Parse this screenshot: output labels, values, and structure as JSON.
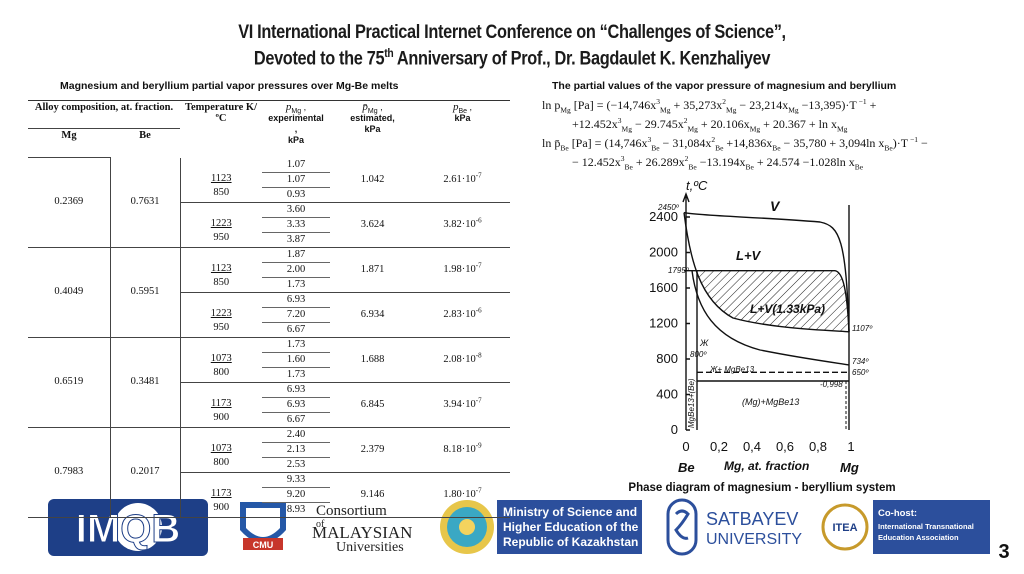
{
  "header": {
    "title_line1": "VI International Practical Internet Conference on “Challenges of Science”,",
    "title_line2_before": "Devoted to the 75",
    "title_line2_sup": "th",
    "title_line2_after": " Anniversary of Prof., Dr. Bagdaulet K. Kenzhaliyev"
  },
  "table": {
    "caption": "Magnesium and beryllium partial vapor pressures over Mg-Be melts",
    "head": {
      "alloy": "Alloy composition, at. fraction.",
      "mg": "Mg",
      "be": "Be",
      "temperature": "Temperature K/ºC",
      "exp": {
        "symbol": "p",
        "sub": "Mg",
        "lines": [
          " ,",
          "experimental",
          ",",
          "kPa"
        ]
      },
      "est": {
        "symbol": "p̄",
        "sub": "Mg",
        "lines": [
          " ,",
          "estimated,",
          "kPa"
        ]
      },
      "pbe": {
        "symbol": "p",
        "sub": "Be",
        "lines": [
          " ,",
          "kPa"
        ]
      }
    },
    "groups": [
      {
        "mg": "0.2369",
        "be": "0.7631",
        "subgroups": [
          {
            "k": "1123",
            "c": "850",
            "exp": [
              "1.07",
              "1.07",
              "0.93"
            ],
            "est": "1.042",
            "pbe": {
              "base": "2.61·10",
              "exp": "-7"
            }
          },
          {
            "k": "1223",
            "c": "950",
            "exp": [
              "3.60",
              "3.33",
              "3.87"
            ],
            "est": "3.624",
            "pbe": {
              "base": "3.82·10",
              "exp": "-6"
            }
          }
        ]
      },
      {
        "mg": "0.4049",
        "be": "0.5951",
        "subgroups": [
          {
            "k": "1123",
            "c": "850",
            "exp": [
              "1.87",
              "2.00",
              "1.73"
            ],
            "est": "1.871",
            "pbe": {
              "base": "1.98·10",
              "exp": "-7"
            }
          },
          {
            "k": "1223",
            "c": "950",
            "exp": [
              "6.93",
              "7.20",
              "6.67"
            ],
            "est": "6.934",
            "pbe": {
              "base": "2.83·10",
              "exp": "-6"
            }
          }
        ]
      },
      {
        "mg": "0.6519",
        "be": "0.3481",
        "subgroups": [
          {
            "k": "1073",
            "c": "800",
            "exp": [
              "1.73",
              "1.60",
              "1.73"
            ],
            "est": "1.688",
            "pbe": {
              "base": "2.08·10",
              "exp": "-8"
            }
          },
          {
            "k": "1173",
            "c": "900",
            "exp": [
              "6.93",
              "6.93",
              "6.67"
            ],
            "est": "6.845",
            "pbe": {
              "base": "3.94·10",
              "exp": "-7"
            }
          }
        ]
      },
      {
        "mg": "0.7983",
        "be": "0.2017",
        "subgroups": [
          {
            "k": "1073",
            "c": "800",
            "exp": [
              "2.40",
              "2.13",
              "2.53"
            ],
            "est": "2.379",
            "pbe": {
              "base": "8.18·10",
              "exp": "-9"
            }
          },
          {
            "k": "1173",
            "c": "900",
            "exp": [
              "9.33",
              "9.20",
              "8.93"
            ],
            "est": "9.146",
            "pbe": {
              "base": "1.80·10",
              "exp": "-7"
            }
          }
        ]
      }
    ]
  },
  "equations": {
    "title": "The partial values of the vapor pressure of magnesium and beryllium",
    "lines": [
      [
        "ln p",
        {
          "sub": "Mg"
        },
        " [Pa] = (−14,746x",
        {
          "sup": "3"
        },
        {
          "sub": "Mg"
        },
        " + 35,273x",
        {
          "sup": "2"
        },
        {
          "sub": "Mg"
        },
        " − 23,214x",
        {
          "sub": "Mg"
        },
        " −13,395)·T",
        {
          "sup": " −1"
        },
        " +"
      ],
      [
        "+12.452x",
        {
          "sup": "3"
        },
        {
          "sub": "Mg"
        },
        " − 29.745x",
        {
          "sup": "2"
        },
        {
          "sub": "Mg"
        },
        " + 20.106x",
        {
          "sub": "Mg"
        },
        " + 20.367 + ln x",
        {
          "sub": "Mg"
        }
      ],
      [
        "ln p̄",
        {
          "sub": "Be"
        },
        " [Pa] = (14,746x",
        {
          "sup": "3"
        },
        {
          "sub": "Be"
        },
        " − 31,084x",
        {
          "sup": "2"
        },
        {
          "sub": "Be"
        },
        " +14,836x",
        {
          "sub": "Be"
        },
        " − 35,780 + 3,094ln x",
        {
          "sub": "Be"
        },
        ")·T",
        {
          "sup": " −1"
        },
        " −"
      ],
      [
        "− 12.452x",
        {
          "sup": "3"
        },
        {
          "sub": "Be"
        },
        " + 26.289x",
        {
          "sup": "2"
        },
        {
          "sub": "Be"
        },
        " −13.194x",
        {
          "sub": "Be"
        },
        " + 24.574 −1.028ln x",
        {
          "sub": "Be"
        }
      ]
    ]
  },
  "diagram": {
    "y_label": "t,ºC",
    "yticks": [
      "2400",
      "2000",
      "1600",
      "1200",
      "800",
      "400",
      "0"
    ],
    "xticks": [
      "0",
      "0,2",
      "0,4",
      "0,6",
      "0,8",
      "1"
    ],
    "labels": {
      "t2450": "2450º",
      "v": "V",
      "lv": "L+V",
      "t1795": "1795º",
      "lv133": "L+V(1.33kPa)",
      "t1107": "1107º",
      "zh": "Ж",
      "t800": "800º",
      "t734": "734º",
      "zh_mgbe": "Ж+ MgBe13",
      "t650": "650º",
      "x998": "-0,998",
      "mg_mgbe": "(Mg)+MgBe13",
      "mgbe_be": "MgBe13+(Be)",
      "be": "Be",
      "xlabel": "Mg, at. fraction",
      "mg": "Mg"
    },
    "caption": "Phase diagram of magnesium - beryllium system"
  },
  "logos": {
    "imqb": "IMQB",
    "consortium": [
      "Consortium",
      "of",
      "MALAYSIAN",
      "Universities"
    ],
    "cmu": "CMU",
    "ministry": [
      "Ministry of Science and",
      "Higher Education of the",
      "Republic of Kazakhstan"
    ],
    "satbayev": [
      "SATBAYEV",
      "UNIVERSITY"
    ],
    "itea": "ITEA",
    "cohost": [
      "Co-host:",
      "International Transnational",
      "Education Association"
    ]
  },
  "page_number": "3"
}
